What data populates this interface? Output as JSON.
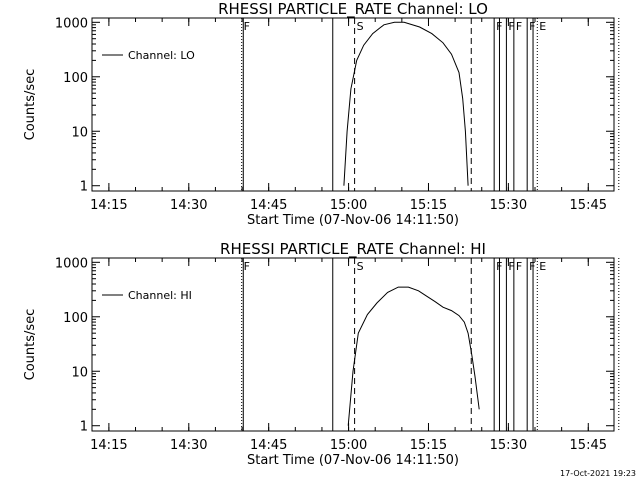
{
  "timestamp": "17-Oct-2021 19:23",
  "chart_data": [
    {
      "type": "line",
      "title": "RHESSI PARTICLE_RATE Channel: LO",
      "xlabel": "Start Time (07-Nov-06 14:11:50)",
      "ylabel": "Counts/sec",
      "legend": {
        "label": "Channel: LO",
        "placement": "top-left"
      },
      "x_tick_labels": [
        "14:15",
        "14:30",
        "14:45",
        "15:00",
        "15:15",
        "15:30",
        "15:45"
      ],
      "y_tick_labels": [
        "1",
        "10",
        "100",
        "1000"
      ],
      "y_scale": "log",
      "xlim_minutes": [
        0,
        98
      ],
      "ylim": [
        0.8,
        1200
      ],
      "grid": false,
      "series": [
        {
          "name": "Channel: LO",
          "points": [
            [
              47.3,
              1.0
            ],
            [
              47.9,
              10
            ],
            [
              48.6,
              60
            ],
            [
              49.7,
              200
            ],
            [
              51.0,
              380
            ],
            [
              52.7,
              620
            ],
            [
              54.8,
              900
            ],
            [
              56.8,
              1000
            ],
            [
              58.6,
              1000
            ],
            [
              61.5,
              820
            ],
            [
              63.8,
              620
            ],
            [
              65.9,
              420
            ],
            [
              67.5,
              260
            ],
            [
              68.9,
              120
            ],
            [
              69.6,
              40
            ],
            [
              70.1,
              10
            ],
            [
              70.6,
              1.0
            ]
          ]
        }
      ],
      "vertical_lines": [
        {
          "t": 28.1,
          "style": "dotted",
          "label": "F"
        },
        {
          "t": 28.4,
          "style": "solid",
          "label": ""
        },
        {
          "t": 45.2,
          "style": "solid",
          "label": ""
        },
        {
          "t": 49.3,
          "style": "dashed",
          "label": "S"
        },
        {
          "t": 71.2,
          "style": "dashed",
          "label": ""
        },
        {
          "t": 75.5,
          "style": "solid",
          "label": "F"
        },
        {
          "t": 76.5,
          "style": "solid",
          "label": ""
        },
        {
          "t": 77.8,
          "style": "solid",
          "label": "F"
        },
        {
          "t": 79.2,
          "style": "solid",
          "label": "F"
        },
        {
          "t": 81.7,
          "style": "solid",
          "label": "F"
        },
        {
          "t": 82.8,
          "style": "solid",
          "label": ""
        },
        {
          "t": 83.6,
          "style": "dotted",
          "label": "E"
        },
        {
          "t": 98.9,
          "style": "dotted",
          "label": ""
        }
      ]
    },
    {
      "type": "line",
      "title": "RHESSI PARTICLE_RATE Channel: HI",
      "xlabel": "Start Time (07-Nov-06 14:11:50)",
      "ylabel": "Counts/sec",
      "legend": {
        "label": "Channel: HI",
        "placement": "top-left"
      },
      "x_tick_labels": [
        "14:15",
        "14:30",
        "14:45",
        "15:00",
        "15:15",
        "15:30",
        "15:45"
      ],
      "y_tick_labels": [
        "1",
        "10",
        "100",
        "1000"
      ],
      "y_scale": "log",
      "xlim_minutes": [
        0,
        98
      ],
      "ylim": [
        0.8,
        1200
      ],
      "grid": false,
      "series": [
        {
          "name": "Channel: HI",
          "points": [
            [
              48.1,
              1.0
            ],
            [
              49.0,
              10
            ],
            [
              50.0,
              50
            ],
            [
              51.7,
              110
            ],
            [
              53.5,
              180
            ],
            [
              55.5,
              280
            ],
            [
              57.5,
              350
            ],
            [
              59.4,
              350
            ],
            [
              61.3,
              300
            ],
            [
              62.8,
              240
            ],
            [
              64.4,
              190
            ],
            [
              65.9,
              150
            ],
            [
              67.5,
              130
            ],
            [
              68.9,
              105
            ],
            [
              69.9,
              80
            ],
            [
              70.6,
              50
            ],
            [
              71.3,
              20
            ],
            [
              71.9,
              8
            ],
            [
              72.7,
              2.0
            ]
          ]
        }
      ],
      "vertical_lines": [
        {
          "t": 28.1,
          "style": "dotted",
          "label": "F"
        },
        {
          "t": 28.4,
          "style": "solid",
          "label": ""
        },
        {
          "t": 45.2,
          "style": "solid",
          "label": ""
        },
        {
          "t": 49.3,
          "style": "dashed",
          "label": "S"
        },
        {
          "t": 71.2,
          "style": "dashed",
          "label": ""
        },
        {
          "t": 75.5,
          "style": "solid",
          "label": "F"
        },
        {
          "t": 76.5,
          "style": "solid",
          "label": ""
        },
        {
          "t": 77.8,
          "style": "solid",
          "label": "F"
        },
        {
          "t": 79.2,
          "style": "solid",
          "label": "F"
        },
        {
          "t": 81.7,
          "style": "solid",
          "label": "F"
        },
        {
          "t": 82.8,
          "style": "solid",
          "label": ""
        },
        {
          "t": 83.6,
          "style": "dotted",
          "label": "E"
        },
        {
          "t": 98.9,
          "style": "dotted",
          "label": ""
        }
      ]
    }
  ]
}
